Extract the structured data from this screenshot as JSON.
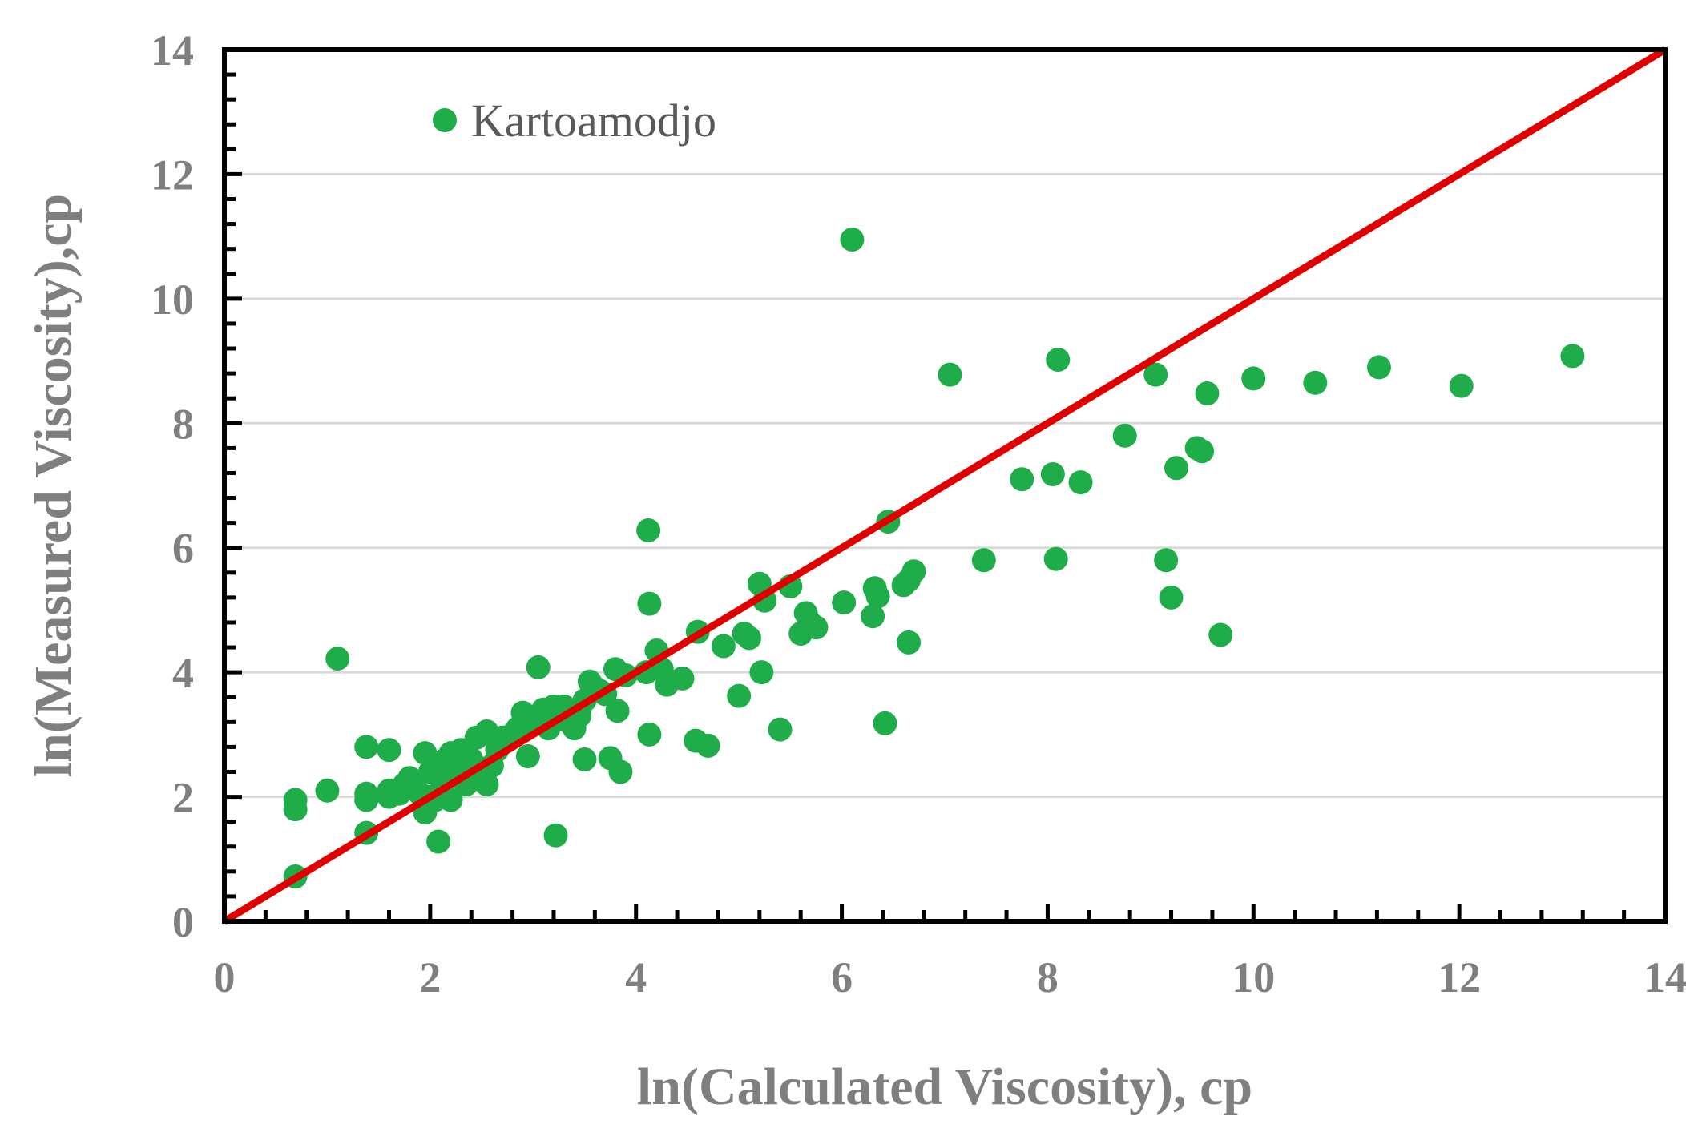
{
  "chart_data": {
    "type": "scatter",
    "xlabel": "ln(Calculated Viscosity), cp",
    "ylabel": "ln(Measured Viscosity),cp",
    "xlim": [
      0,
      14
    ],
    "ylim": [
      0,
      14
    ],
    "xticks": [
      0,
      2,
      4,
      6,
      8,
      10,
      12,
      14
    ],
    "yticks": [
      0,
      2,
      4,
      6,
      8,
      10,
      12,
      14
    ],
    "grid": "horizontal",
    "legend_position": "top-left",
    "colors": {
      "points": "#1fad4a",
      "line": "#e00000",
      "grid": "#d9d9d9",
      "text": "#7f7f7f"
    },
    "reference_line": {
      "x": [
        0,
        14
      ],
      "y": [
        0,
        14
      ]
    },
    "series": [
      {
        "name": "Kartoamodjo",
        "points": [
          [
            0.69,
            1.95
          ],
          [
            0.69,
            1.8
          ],
          [
            0.69,
            0.72
          ],
          [
            1.0,
            2.1
          ],
          [
            1.1,
            4.22
          ],
          [
            1.38,
            2.8
          ],
          [
            1.38,
            2.05
          ],
          [
            1.38,
            1.95
          ],
          [
            1.38,
            1.42
          ],
          [
            1.6,
            2.75
          ],
          [
            1.6,
            2.1
          ],
          [
            1.6,
            2.0
          ],
          [
            1.7,
            2.05
          ],
          [
            1.75,
            2.2
          ],
          [
            1.8,
            2.3
          ],
          [
            1.85,
            2.15
          ],
          [
            1.9,
            2.05
          ],
          [
            1.95,
            2.7
          ],
          [
            1.95,
            1.75
          ],
          [
            2.0,
            2.4
          ],
          [
            2.0,
            2.0
          ],
          [
            2.05,
            2.55
          ],
          [
            2.05,
            1.95
          ],
          [
            2.08,
            1.28
          ],
          [
            2.1,
            2.3
          ],
          [
            2.15,
            2.6
          ],
          [
            2.2,
            2.7
          ],
          [
            2.2,
            1.95
          ],
          [
            2.25,
            2.5
          ],
          [
            2.3,
            2.75
          ],
          [
            2.3,
            2.3
          ],
          [
            2.35,
            2.2
          ],
          [
            2.4,
            2.6
          ],
          [
            2.45,
            2.95
          ],
          [
            2.5,
            2.45
          ],
          [
            2.55,
            3.05
          ],
          [
            2.55,
            2.2
          ],
          [
            2.6,
            2.5
          ],
          [
            2.65,
            2.75
          ],
          [
            2.7,
            2.95
          ],
          [
            2.75,
            2.9
          ],
          [
            2.8,
            3.0
          ],
          [
            2.85,
            3.1
          ],
          [
            2.9,
            3.35
          ],
          [
            2.95,
            2.65
          ],
          [
            3.0,
            3.2
          ],
          [
            3.05,
            4.08
          ],
          [
            3.1,
            3.4
          ],
          [
            3.15,
            3.1
          ],
          [
            3.2,
            3.45
          ],
          [
            3.22,
            1.38
          ],
          [
            3.3,
            3.45
          ],
          [
            3.35,
            3.2
          ],
          [
            3.4,
            3.1
          ],
          [
            3.45,
            3.3
          ],
          [
            3.5,
            3.55
          ],
          [
            3.5,
            2.6
          ],
          [
            3.55,
            3.85
          ],
          [
            3.6,
            3.75
          ],
          [
            3.65,
            3.7
          ],
          [
            3.7,
            3.65
          ],
          [
            3.75,
            2.62
          ],
          [
            3.8,
            4.05
          ],
          [
            3.82,
            3.38
          ],
          [
            3.85,
            2.4
          ],
          [
            3.9,
            3.95
          ],
          [
            4.1,
            4.0
          ],
          [
            4.12,
            6.28
          ],
          [
            4.13,
            5.1
          ],
          [
            4.13,
            3.0
          ],
          [
            4.2,
            4.35
          ],
          [
            4.25,
            4.05
          ],
          [
            4.3,
            3.8
          ],
          [
            4.45,
            3.9
          ],
          [
            4.58,
            2.9
          ],
          [
            4.6,
            4.65
          ],
          [
            4.7,
            2.82
          ],
          [
            4.85,
            4.42
          ],
          [
            5.0,
            3.62
          ],
          [
            5.05,
            4.62
          ],
          [
            5.1,
            4.55
          ],
          [
            5.2,
            5.42
          ],
          [
            5.22,
            4.0
          ],
          [
            5.25,
            5.15
          ],
          [
            5.4,
            3.08
          ],
          [
            5.5,
            5.38
          ],
          [
            5.6,
            4.62
          ],
          [
            5.65,
            4.95
          ],
          [
            5.7,
            4.78
          ],
          [
            5.75,
            4.72
          ],
          [
            6.02,
            5.12
          ],
          [
            6.1,
            10.95
          ],
          [
            6.3,
            4.9
          ],
          [
            6.32,
            5.35
          ],
          [
            6.35,
            5.22
          ],
          [
            6.42,
            3.18
          ],
          [
            6.45,
            6.42
          ],
          [
            6.6,
            5.4
          ],
          [
            6.65,
            5.48
          ],
          [
            6.65,
            4.48
          ],
          [
            6.7,
            5.62
          ],
          [
            7.05,
            8.78
          ],
          [
            7.38,
            5.8
          ],
          [
            7.75,
            7.1
          ],
          [
            8.05,
            7.18
          ],
          [
            8.08,
            5.82
          ],
          [
            8.1,
            9.02
          ],
          [
            8.32,
            7.05
          ],
          [
            8.75,
            7.8
          ],
          [
            9.05,
            8.78
          ],
          [
            9.15,
            5.8
          ],
          [
            9.2,
            5.2
          ],
          [
            9.25,
            7.28
          ],
          [
            9.45,
            7.6
          ],
          [
            9.5,
            7.55
          ],
          [
            9.55,
            8.48
          ],
          [
            9.68,
            4.6
          ],
          [
            10.0,
            8.72
          ],
          [
            10.6,
            8.65
          ],
          [
            11.22,
            8.9
          ],
          [
            12.02,
            8.6
          ],
          [
            13.1,
            9.08
          ]
        ]
      }
    ]
  }
}
